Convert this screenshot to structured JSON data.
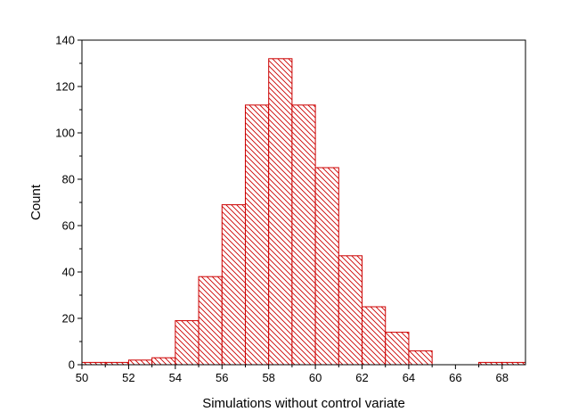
{
  "chart_data": {
    "type": "bar",
    "subtype": "histogram",
    "title": "",
    "xlabel": "Simulations without control variate",
    "ylabel": "Count",
    "xlim": [
      50,
      69
    ],
    "ylim": [
      0,
      140
    ],
    "x_ticks": [
      "50",
      "52",
      "54",
      "56",
      "58",
      "60",
      "62",
      "64",
      "66",
      "68"
    ],
    "y_ticks": [
      "0",
      "20",
      "40",
      "60",
      "80",
      "100",
      "120",
      "140"
    ],
    "bin_width": 1,
    "bins": [
      {
        "start": 50,
        "end": 51,
        "count": 1
      },
      {
        "start": 51,
        "end": 52,
        "count": 1
      },
      {
        "start": 52,
        "end": 53,
        "count": 2
      },
      {
        "start": 53,
        "end": 54,
        "count": 3
      },
      {
        "start": 54,
        "end": 55,
        "count": 19
      },
      {
        "start": 55,
        "end": 56,
        "count": 38
      },
      {
        "start": 56,
        "end": 57,
        "count": 69
      },
      {
        "start": 57,
        "end": 58,
        "count": 112
      },
      {
        "start": 58,
        "end": 59,
        "count": 132
      },
      {
        "start": 59,
        "end": 60,
        "count": 112
      },
      {
        "start": 60,
        "end": 61,
        "count": 85
      },
      {
        "start": 61,
        "end": 62,
        "count": 47
      },
      {
        "start": 62,
        "end": 63,
        "count": 25
      },
      {
        "start": 63,
        "end": 64,
        "count": 14
      },
      {
        "start": 64,
        "end": 65,
        "count": 6
      },
      {
        "start": 65,
        "end": 66,
        "count": 0
      },
      {
        "start": 66,
        "end": 67,
        "count": 0
      },
      {
        "start": 67,
        "end": 68,
        "count": 1
      },
      {
        "start": 68,
        "end": 69,
        "count": 1
      }
    ],
    "bar_color": "#cc0000",
    "bar_fill": "diagonal-hatch",
    "grid": false,
    "legend": "none"
  }
}
